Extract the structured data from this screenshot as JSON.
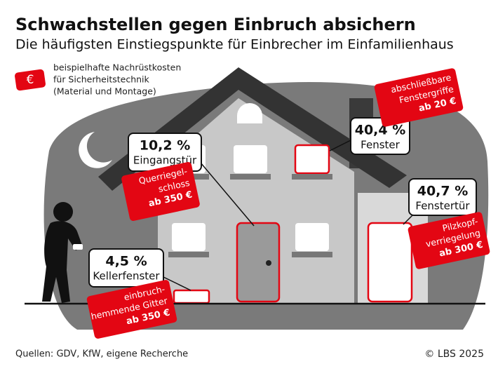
{
  "header": {
    "title": "Schwachstellen gegen Einbruch absichern",
    "subtitle": "Die häufigsten Einstiegspunkte für Einbrecher im Einfamilienhaus"
  },
  "legend": {
    "icon": "€",
    "lines": [
      "beispielhafte Nachrüstkosten",
      "für Sicherheitstechnik",
      "(Material und Montage)"
    ]
  },
  "callouts": [
    {
      "value": "10,2 %",
      "label": "Eingangstür",
      "cost_lines": [
        "Querriegel-",
        "schloss"
      ],
      "price": "ab 350 €"
    },
    {
      "value": "40,4 %",
      "label": "Fenster",
      "cost_lines": [
        "abschließbare",
        "Fenstergriffe"
      ],
      "price": "ab 20 €"
    },
    {
      "value": "40,7 %",
      "label": "Fenstertür",
      "cost_lines": [
        "Pilzkopf-",
        "verriegelung"
      ],
      "price": "ab 300 €"
    },
    {
      "value": "4,5 %",
      "label": "Kellerfenster",
      "cost_lines": [
        "einbruch-",
        "hemmende Gitter"
      ],
      "price": "ab 350 €"
    }
  ],
  "footer": {
    "source": "Quellen: GDV, KfW, eigene Recherche",
    "copyright": "© LBS 2025"
  }
}
